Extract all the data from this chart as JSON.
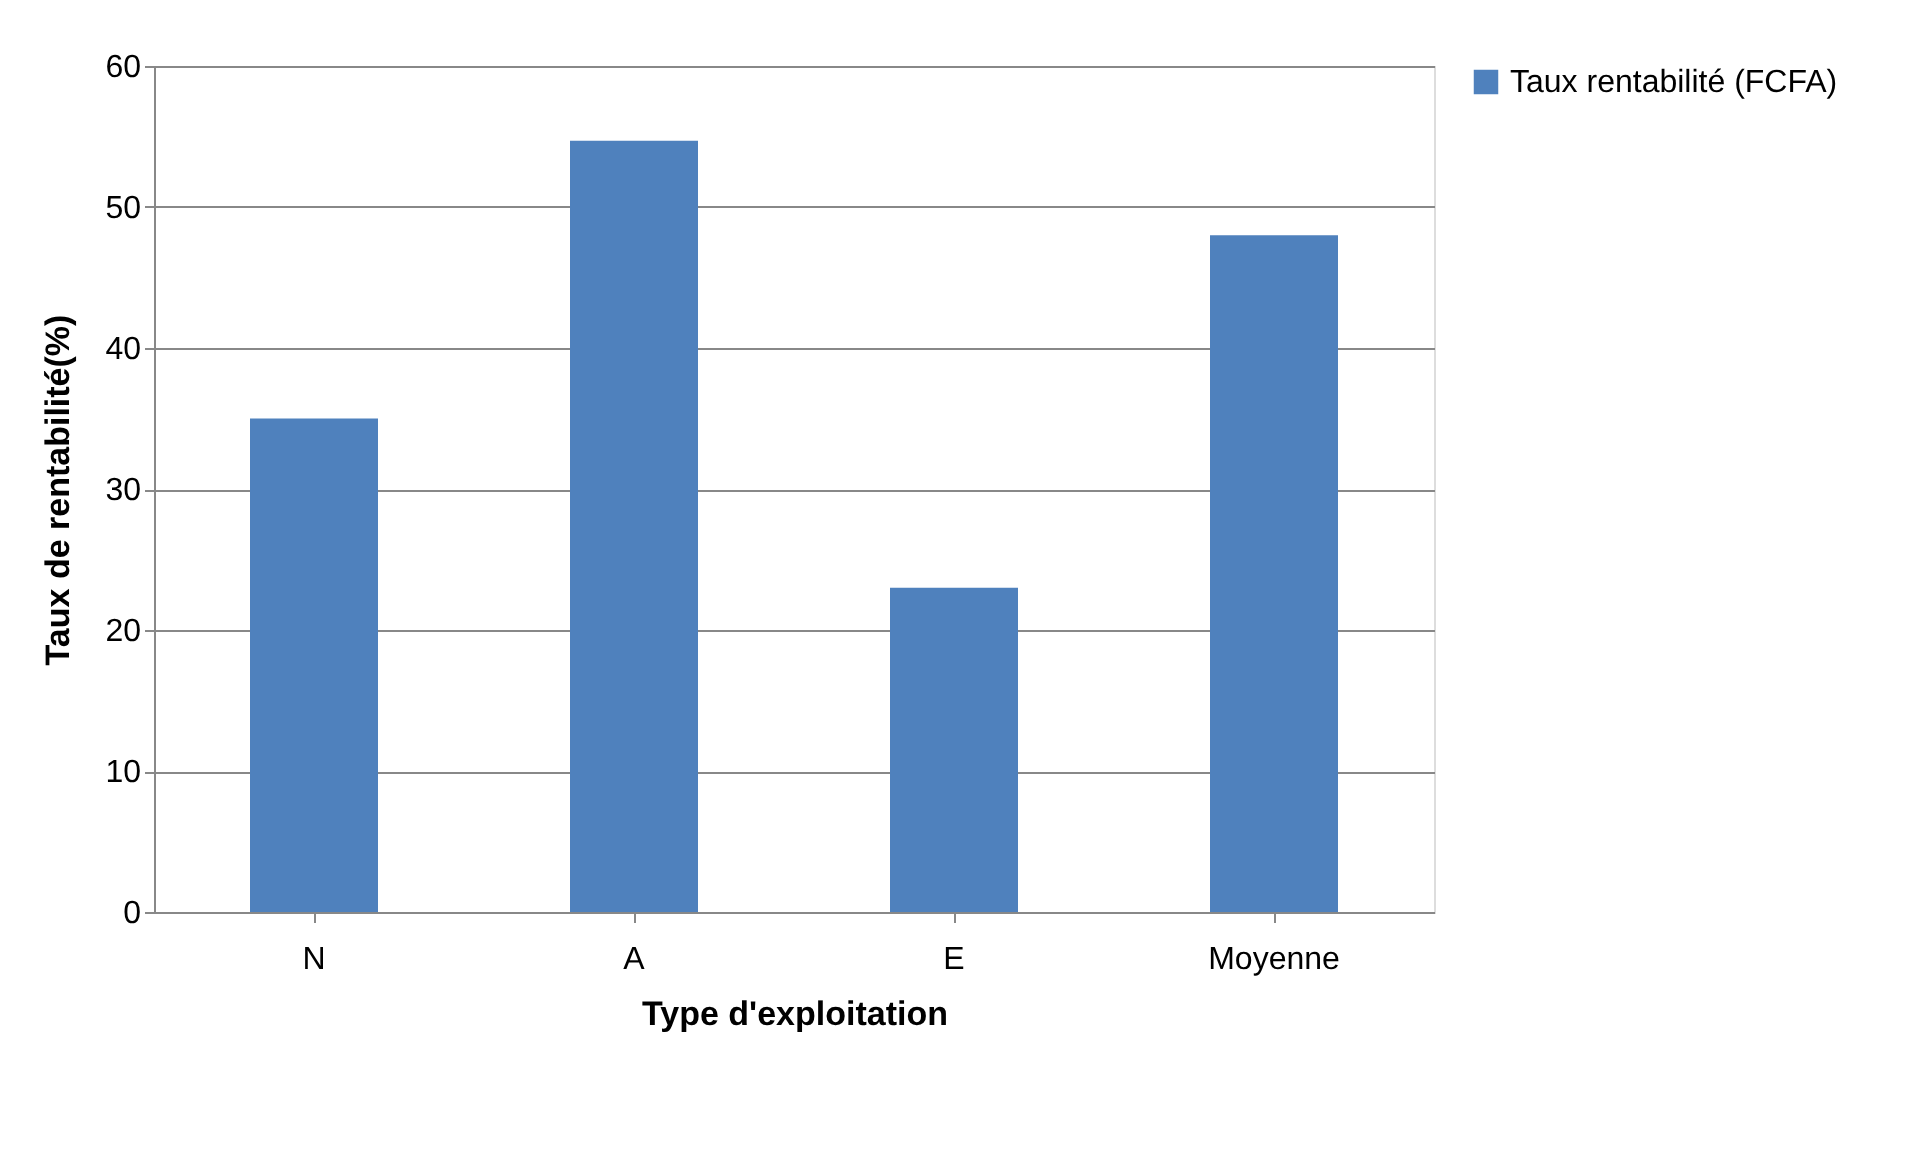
{
  "chart_data": {
    "type": "bar",
    "xlabel": "Type d'exploitation",
    "ylabel": "Taux de rentabilité(%)",
    "categories": [
      "N",
      "A",
      "E",
      "Moyenne"
    ],
    "series": [
      {
        "name": "Taux rentabilité (FCFA)",
        "color": "#4f81bd",
        "values": [
          35,
          54.7,
          23,
          48
        ]
      }
    ],
    "ylim": [
      0,
      60
    ],
    "yticks": [
      0,
      10,
      20,
      30,
      40,
      50,
      60
    ],
    "grid": "y",
    "legend": "right"
  }
}
